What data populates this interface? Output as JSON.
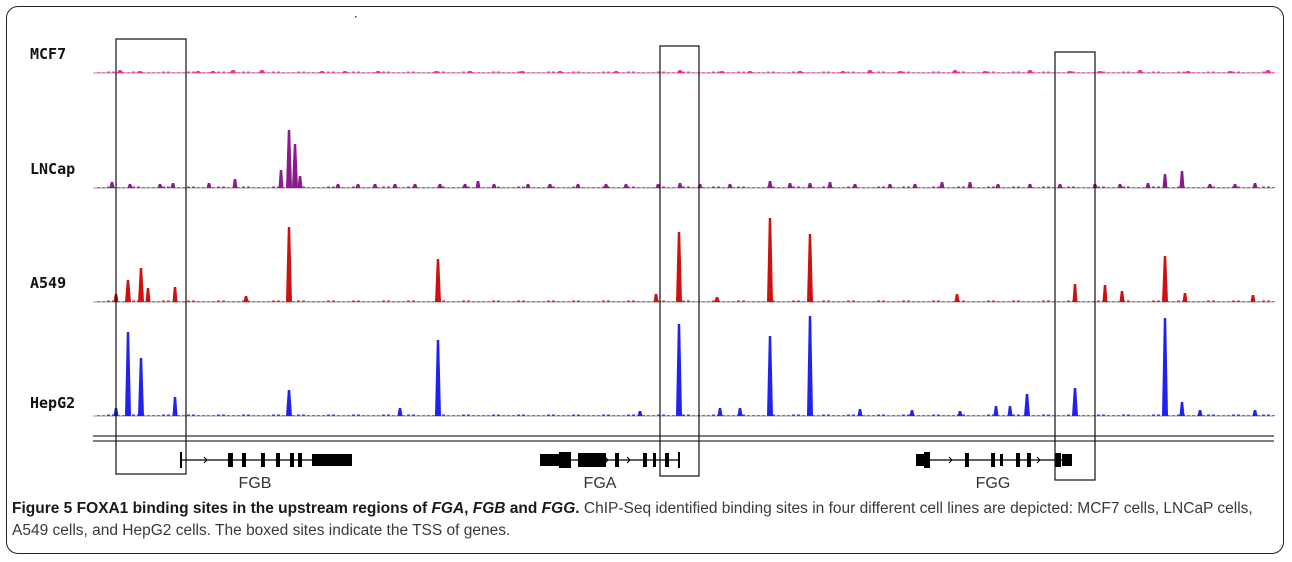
{
  "tracks": [
    {
      "name": "MCF7",
      "color": "#ee2e9a"
    },
    {
      "name": "LNCap",
      "color": "#8b1a8b"
    },
    {
      "name": "A549",
      "color": "#cc1111"
    },
    {
      "name": "HepG2",
      "color": "#2222ee"
    }
  ],
  "genes": [
    {
      "name": "FGB"
    },
    {
      "name": "FGA"
    },
    {
      "name": "FGG"
    }
  ],
  "caption": {
    "figure_label": "Figure 5",
    "title_prefix": "FOXA1 binding sites in the upstream regions of ",
    "gene1": "FGA",
    "sep1": ", ",
    "gene2": "FGB",
    "sep2": " and ",
    "gene3": "FGG",
    "title_end": ".",
    "body": "ChIP-Seq identified binding sites in four different cell lines are depicted: MCF7 cells, LNCaP cells, A549 cells, and HepG2 cells. The boxed sites indicate the TSS of genes."
  }
}
